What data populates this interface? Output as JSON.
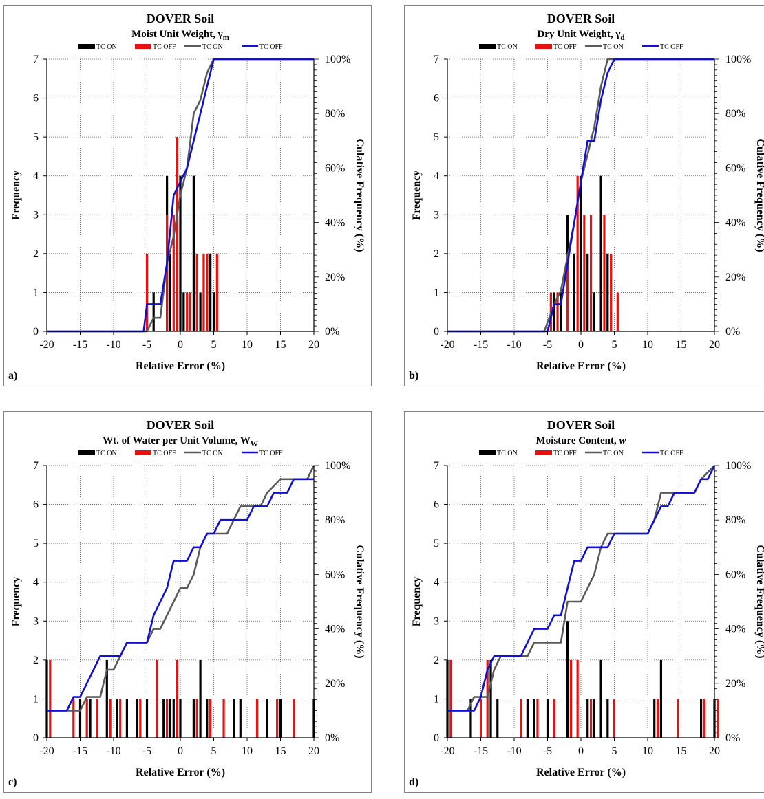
{
  "chart_data": [
    {
      "type": "bar",
      "panel_label": "a)",
      "title": "DOVER Soil",
      "subtitle": "Moist Unit Weight, γ",
      "subtitle_sub": "m",
      "xlabel": "Relative Error (%)",
      "ylabel": "Frequency",
      "y2label": "Culative Frequency (%)",
      "xlim": [
        -20,
        20
      ],
      "ylim": [
        0,
        7
      ],
      "y2lim": [
        0,
        100
      ],
      "xticks": [
        "-20",
        "-15",
        "-10",
        "-5",
        "0",
        "5",
        "10",
        "15",
        "20"
      ],
      "yticks": [
        "0",
        "1",
        "2",
        "3",
        "4",
        "5",
        "6",
        "7"
      ],
      "y2ticks": [
        "0%",
        "20%",
        "40%",
        "60%",
        "80%",
        "100%"
      ],
      "grid": true,
      "legend": [
        "TC ON",
        "TC OFF",
        "TC ON",
        "TC OFF"
      ],
      "colors": {
        "bar_on": "#000000",
        "bar_off": "#e8110f",
        "cum_on": "#595959",
        "cum_off": "#0f0fd6"
      },
      "bars_on": [
        [
          -4,
          1
        ],
        [
          -2,
          4
        ],
        [
          -1.5,
          2
        ],
        [
          0,
          4
        ],
        [
          0.5,
          1
        ],
        [
          2,
          4
        ],
        [
          3,
          1
        ],
        [
          4,
          2
        ],
        [
          4.5,
          2
        ],
        [
          5,
          1
        ]
      ],
      "bars_off": [
        [
          -5,
          2
        ],
        [
          -2,
          3
        ],
        [
          -1,
          3
        ],
        [
          -0.5,
          5
        ],
        [
          1,
          1
        ],
        [
          1.5,
          1
        ],
        [
          2.5,
          2
        ],
        [
          3.5,
          2
        ],
        [
          4,
          2
        ],
        [
          5.5,
          2
        ]
      ],
      "cum_on": [
        [
          -20,
          0
        ],
        [
          -5,
          0
        ],
        [
          -4,
          5
        ],
        [
          -3,
          5
        ],
        [
          -2,
          25
        ],
        [
          -1,
          35
        ],
        [
          0,
          50
        ],
        [
          1,
          60
        ],
        [
          2,
          80
        ],
        [
          3,
          85
        ],
        [
          4,
          95
        ],
        [
          5,
          100
        ],
        [
          20,
          100
        ]
      ],
      "cum_off": [
        [
          -20,
          0
        ],
        [
          -5.5,
          0
        ],
        [
          -5,
          10
        ],
        [
          -3,
          10
        ],
        [
          -2,
          25
        ],
        [
          -1,
          50
        ],
        [
          1,
          60
        ],
        [
          3,
          80
        ],
        [
          5,
          100
        ],
        [
          20,
          100
        ]
      ]
    },
    {
      "type": "bar",
      "panel_label": "b)",
      "title": "DOVER Soil",
      "subtitle": "Dry Unit Weight, γ",
      "subtitle_sub": "d",
      "xlabel": "Relative Error (%)",
      "ylabel": "Frequency",
      "y2label": "Culative Frequency (%)",
      "xlim": [
        -20,
        20
      ],
      "ylim": [
        0,
        7
      ],
      "y2lim": [
        0,
        100
      ],
      "xticks": [
        "-20",
        "-15",
        "-10",
        "-5",
        "0",
        "5",
        "10",
        "15",
        "20"
      ],
      "yticks": [
        "0",
        "1",
        "2",
        "3",
        "4",
        "5",
        "6",
        "7"
      ],
      "y2ticks": [
        "0%",
        "20%",
        "40%",
        "60%",
        "80%",
        "100%"
      ],
      "grid": true,
      "legend": [
        "TC ON",
        "TC OFF",
        "TC ON",
        "TC OFF"
      ],
      "colors": {
        "bar_on": "#000000",
        "bar_off": "#e8110f",
        "cum_on": "#595959",
        "cum_off": "#0f0fd6"
      },
      "bars_on": [
        [
          -4,
          1
        ],
        [
          -3,
          1
        ],
        [
          -2,
          3
        ],
        [
          -1,
          2
        ],
        [
          0,
          4
        ],
        [
          1,
          2
        ],
        [
          2,
          1
        ],
        [
          3,
          4
        ],
        [
          4,
          2
        ]
      ],
      "bars_off": [
        [
          -4.5,
          1
        ],
        [
          -3.5,
          1
        ],
        [
          -2,
          2
        ],
        [
          -0.5,
          4
        ],
        [
          0.5,
          3
        ],
        [
          1.5,
          3
        ],
        [
          3.5,
          3
        ],
        [
          4.5,
          2
        ],
        [
          5.5,
          1
        ]
      ],
      "cum_on": [
        [
          -20,
          0
        ],
        [
          -5.5,
          0
        ],
        [
          -4,
          10
        ],
        [
          -3,
          15
        ],
        [
          -1,
          40
        ],
        [
          0,
          55
        ],
        [
          1,
          65
        ],
        [
          2,
          75
        ],
        [
          3,
          90
        ],
        [
          4,
          100
        ],
        [
          20,
          100
        ]
      ],
      "cum_off": [
        [
          -20,
          0
        ],
        [
          -5,
          0
        ],
        [
          -4,
          10
        ],
        [
          -3,
          10
        ],
        [
          -2,
          25
        ],
        [
          0,
          55
        ],
        [
          1,
          70
        ],
        [
          2,
          70
        ],
        [
          3,
          85
        ],
        [
          4,
          95
        ],
        [
          5,
          100
        ],
        [
          20,
          100
        ]
      ]
    },
    {
      "type": "bar",
      "panel_label": "c)",
      "title": "DOVER Soil",
      "subtitle": "Wt. of Water per Unit Volume, W",
      "subtitle_sub": "W",
      "xlabel": "Relative Error (%)",
      "ylabel": "Frequency",
      "y2label": "Culative Frequency (%)",
      "xlim": [
        -20,
        20
      ],
      "ylim": [
        0,
        7
      ],
      "y2lim": [
        0,
        100
      ],
      "xticks": [
        "-20",
        "-15",
        "-10",
        "-5",
        "0",
        "5",
        "10",
        "15",
        "20"
      ],
      "yticks": [
        "0",
        "1",
        "2",
        "3",
        "4",
        "5",
        "6",
        "7"
      ],
      "y2ticks": [
        "0%",
        "20%",
        "40%",
        "60%",
        "80%",
        "100%"
      ],
      "grid": true,
      "legend": [
        "TC ON",
        "TC OFF",
        "TC ON",
        "TC OFF"
      ],
      "colors": {
        "bar_on": "#000000",
        "bar_off": "#e8110f",
        "cum_on": "#595959",
        "cum_off": "#0f0fd6"
      },
      "bars_on": [
        [
          -20,
          2
        ],
        [
          -15,
          1
        ],
        [
          -13.5,
          1
        ],
        [
          -11,
          2
        ],
        [
          -9.5,
          1
        ],
        [
          -8,
          1
        ],
        [
          -6.5,
          1
        ],
        [
          -5,
          1
        ],
        [
          -2.5,
          1
        ],
        [
          -1.5,
          1
        ],
        [
          -1,
          1
        ],
        [
          0,
          1
        ],
        [
          2,
          1
        ],
        [
          3,
          2
        ],
        [
          4,
          1
        ],
        [
          8,
          1
        ],
        [
          9,
          1
        ],
        [
          13,
          1
        ],
        [
          15,
          1
        ],
        [
          20,
          1
        ]
      ],
      "bars_off": [
        [
          -19.5,
          2
        ],
        [
          -16,
          1
        ],
        [
          -14,
          1
        ],
        [
          -12.5,
          1
        ],
        [
          -10.5,
          1
        ],
        [
          -9,
          1
        ],
        [
          -6,
          1
        ],
        [
          -3.5,
          2
        ],
        [
          -2,
          1
        ],
        [
          -0.5,
          2
        ],
        [
          2.5,
          1
        ],
        [
          4.5,
          1
        ],
        [
          6.5,
          1
        ],
        [
          11.5,
          1
        ],
        [
          14.5,
          1
        ],
        [
          17,
          1
        ]
      ],
      "cum_on": [
        [
          -20,
          10
        ],
        [
          -15,
          10
        ],
        [
          -14,
          15
        ],
        [
          -12,
          15
        ],
        [
          -11,
          25
        ],
        [
          -10,
          25
        ],
        [
          -8,
          35
        ],
        [
          -7,
          35
        ],
        [
          -5,
          35
        ],
        [
          -4,
          40
        ],
        [
          -3,
          40
        ],
        [
          -1,
          50
        ],
        [
          0,
          55
        ],
        [
          1,
          55
        ],
        [
          2,
          60
        ],
        [
          3,
          70
        ],
        [
          4,
          75
        ],
        [
          5,
          75
        ],
        [
          7,
          75
        ],
        [
          9,
          85
        ],
        [
          12,
          85
        ],
        [
          13,
          90
        ],
        [
          15,
          95
        ],
        [
          19,
          95
        ],
        [
          20,
          100
        ]
      ],
      "cum_off": [
        [
          -20,
          10
        ],
        [
          -17,
          10
        ],
        [
          -16,
          15
        ],
        [
          -15,
          15
        ],
        [
          -14,
          20
        ],
        [
          -12,
          30
        ],
        [
          -10,
          30
        ],
        [
          -9,
          30
        ],
        [
          -8,
          35
        ],
        [
          -6,
          35
        ],
        [
          -5,
          35
        ],
        [
          -4,
          45
        ],
        [
          -2,
          55
        ],
        [
          -1,
          65
        ],
        [
          1,
          65
        ],
        [
          2,
          70
        ],
        [
          3,
          70
        ],
        [
          4,
          75
        ],
        [
          5,
          75
        ],
        [
          6,
          80
        ],
        [
          8,
          80
        ],
        [
          10,
          80
        ],
        [
          11,
          85
        ],
        [
          12,
          85
        ],
        [
          13,
          85
        ],
        [
          14,
          90
        ],
        [
          16,
          90
        ],
        [
          17,
          95
        ],
        [
          20,
          95
        ]
      ]
    },
    {
      "type": "bar",
      "panel_label": "d)",
      "title": "DOVER Soil",
      "subtitle": "Moisture Content, ",
      "subtitle_italic": "w",
      "xlabel": "Relative Error (%)",
      "ylabel": "Frequency",
      "y2label": "Culative Frequency (%)",
      "xlim": [
        -20,
        20
      ],
      "ylim": [
        0,
        7
      ],
      "y2lim": [
        0,
        100
      ],
      "xticks": [
        "-20",
        "-15",
        "-10",
        "-5",
        "0",
        "5",
        "10",
        "15",
        "20"
      ],
      "yticks": [
        "0",
        "1",
        "2",
        "3",
        "4",
        "5",
        "6",
        "7"
      ],
      "y2ticks": [
        "0%",
        "20%",
        "40%",
        "60%",
        "80%",
        "100%"
      ],
      "grid": true,
      "legend": [
        "TC ON",
        "TC OFF",
        "TC ON",
        "TC OFF"
      ],
      "colors": {
        "bar_on": "#000000",
        "bar_off": "#e8110f",
        "cum_on": "#595959",
        "cum_off": "#0f0fd6"
      },
      "bars_on": [
        [
          -20,
          2
        ],
        [
          -16.5,
          1
        ],
        [
          -13.5,
          2
        ],
        [
          -12.5,
          1
        ],
        [
          -8,
          1
        ],
        [
          -7,
          1
        ],
        [
          -5,
          1
        ],
        [
          -2,
          3
        ],
        [
          1,
          1
        ],
        [
          2,
          1
        ],
        [
          3,
          2
        ],
        [
          4,
          1
        ],
        [
          11,
          1
        ],
        [
          12,
          2
        ],
        [
          18,
          1
        ],
        [
          20,
          1
        ]
      ],
      "bars_off": [
        [
          -19.5,
          2
        ],
        [
          -15,
          1
        ],
        [
          -14,
          2
        ],
        [
          -9,
          1
        ],
        [
          -6.5,
          1
        ],
        [
          -4,
          1
        ],
        [
          -1.5,
          2
        ],
        [
          -0.5,
          2
        ],
        [
          1.5,
          1
        ],
        [
          5,
          1
        ],
        [
          11.5,
          1
        ],
        [
          14.5,
          1
        ],
        [
          18.5,
          1
        ],
        [
          20.5,
          1
        ]
      ],
      "cum_on": [
        [
          -20,
          10
        ],
        [
          -17,
          10
        ],
        [
          -16,
          15
        ],
        [
          -15,
          15
        ],
        [
          -14,
          15
        ],
        [
          -13,
          25
        ],
        [
          -12,
          30
        ],
        [
          -8,
          30
        ],
        [
          -7,
          35
        ],
        [
          -3,
          35
        ],
        [
          -2,
          50
        ],
        [
          0,
          50
        ],
        [
          1,
          55
        ],
        [
          2,
          60
        ],
        [
          3,
          70
        ],
        [
          4,
          75
        ],
        [
          10,
          75
        ],
        [
          11,
          80
        ],
        [
          12,
          90
        ],
        [
          17,
          90
        ],
        [
          18,
          95
        ],
        [
          20,
          100
        ]
      ],
      "cum_off": [
        [
          -20,
          10
        ],
        [
          -17,
          10
        ],
        [
          -16,
          10
        ],
        [
          -15,
          15
        ],
        [
          -14,
          25
        ],
        [
          -13,
          30
        ],
        [
          -9,
          30
        ],
        [
          -8,
          35
        ],
        [
          -7,
          40
        ],
        [
          -5,
          40
        ],
        [
          -4,
          45
        ],
        [
          -3,
          45
        ],
        [
          -2,
          55
        ],
        [
          -1,
          65
        ],
        [
          0,
          65
        ],
        [
          1,
          70
        ],
        [
          3,
          70
        ],
        [
          4,
          70
        ],
        [
          5,
          75
        ],
        [
          10,
          75
        ],
        [
          11,
          80
        ],
        [
          12,
          85
        ],
        [
          13,
          85
        ],
        [
          14,
          90
        ],
        [
          17,
          90
        ],
        [
          18,
          95
        ],
        [
          19,
          95
        ],
        [
          20,
          100
        ]
      ]
    }
  ]
}
